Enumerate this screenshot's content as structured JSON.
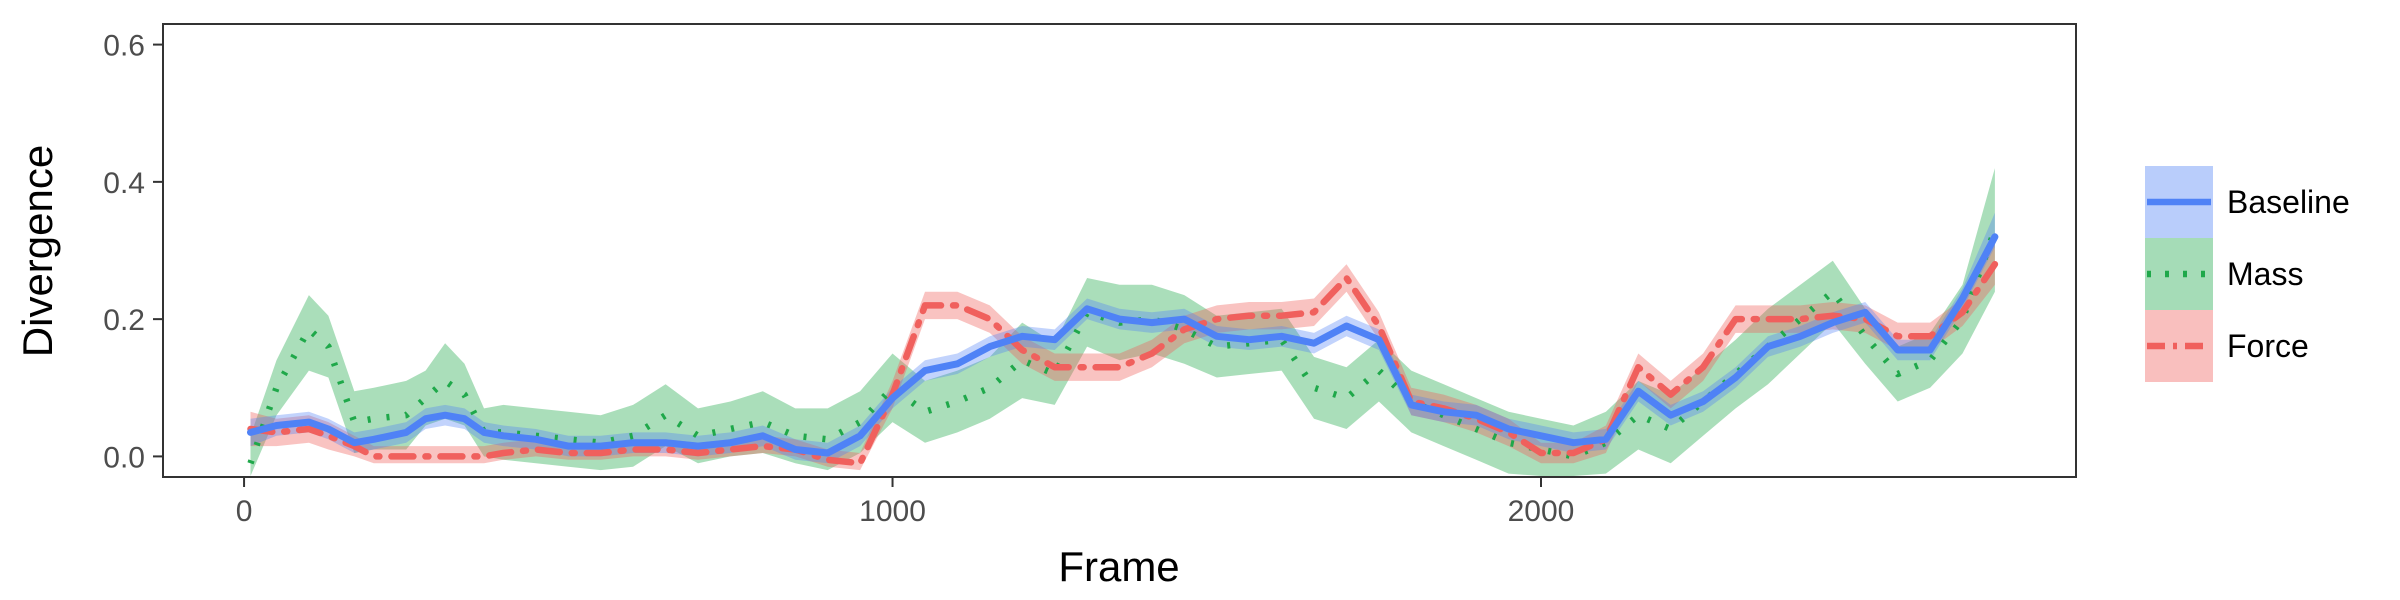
{
  "chart_data": {
    "type": "line",
    "xlabel": "Frame",
    "ylabel": "Divergence",
    "xlim": [
      -125,
      2825
    ],
    "ylim": [
      -0.03,
      0.63
    ],
    "xticks": [
      0,
      1000,
      2000
    ],
    "xtick_labels": [
      "0",
      "1000",
      "2000"
    ],
    "yticks": [
      0.0,
      0.2,
      0.4,
      0.6
    ],
    "ytick_labels": [
      "0.0",
      "0.2",
      "0.4",
      "0.6"
    ],
    "grid": false,
    "legend_position": "right",
    "x": [
      10,
      50,
      100,
      130,
      170,
      200,
      250,
      280,
      310,
      340,
      370,
      400,
      450,
      500,
      550,
      600,
      650,
      700,
      750,
      800,
      850,
      900,
      950,
      1000,
      1050,
      1100,
      1150,
      1200,
      1250,
      1300,
      1350,
      1400,
      1450,
      1500,
      1550,
      1600,
      1650,
      1700,
      1750,
      1800,
      1850,
      1900,
      1950,
      2000,
      2050,
      2100,
      2150,
      2200,
      2250,
      2300,
      2350,
      2400,
      2450,
      2500,
      2550,
      2600,
      2650,
      2700
    ],
    "series": [
      {
        "name": "Baseline",
        "color": "#4f82f6",
        "dash": "solid",
        "values": [
          0.035,
          0.045,
          0.05,
          0.04,
          0.02,
          0.025,
          0.035,
          0.055,
          0.06,
          0.055,
          0.035,
          0.03,
          0.025,
          0.015,
          0.015,
          0.02,
          0.02,
          0.015,
          0.02,
          0.03,
          0.01,
          0.005,
          0.03,
          0.085,
          0.125,
          0.135,
          0.16,
          0.175,
          0.17,
          0.215,
          0.2,
          0.195,
          0.2,
          0.175,
          0.17,
          0.175,
          0.165,
          0.19,
          0.17,
          0.075,
          0.065,
          0.06,
          0.04,
          0.03,
          0.02,
          0.025,
          0.095,
          0.06,
          0.08,
          0.115,
          0.16,
          0.175,
          0.195,
          0.21,
          0.155,
          0.155,
          0.23,
          0.32
        ],
        "lower": [
          0.015,
          0.03,
          0.035,
          0.025,
          0.005,
          0.01,
          0.02,
          0.04,
          0.045,
          0.04,
          0.02,
          0.015,
          0.01,
          0.0,
          0.0,
          0.005,
          0.005,
          0.0,
          0.005,
          0.015,
          -0.005,
          -0.01,
          0.015,
          0.07,
          0.11,
          0.12,
          0.145,
          0.16,
          0.155,
          0.2,
          0.185,
          0.18,
          0.185,
          0.16,
          0.155,
          0.16,
          0.15,
          0.175,
          0.155,
          0.06,
          0.05,
          0.045,
          0.025,
          0.015,
          0.005,
          0.01,
          0.08,
          0.045,
          0.065,
          0.1,
          0.145,
          0.16,
          0.18,
          0.195,
          0.14,
          0.14,
          0.215,
          0.305
        ],
        "upper": [
          0.055,
          0.06,
          0.065,
          0.055,
          0.035,
          0.04,
          0.05,
          0.07,
          0.075,
          0.07,
          0.05,
          0.045,
          0.04,
          0.03,
          0.03,
          0.035,
          0.035,
          0.03,
          0.035,
          0.045,
          0.025,
          0.02,
          0.045,
          0.1,
          0.14,
          0.15,
          0.175,
          0.19,
          0.185,
          0.23,
          0.215,
          0.21,
          0.215,
          0.19,
          0.185,
          0.19,
          0.18,
          0.205,
          0.185,
          0.09,
          0.08,
          0.075,
          0.055,
          0.045,
          0.035,
          0.04,
          0.11,
          0.075,
          0.095,
          0.13,
          0.175,
          0.19,
          0.21,
          0.225,
          0.17,
          0.17,
          0.245,
          0.355
        ]
      },
      {
        "name": "Mass",
        "color": "#1fa84a",
        "dash": "dotted",
        "values": [
          -0.01,
          0.1,
          0.185,
          0.16,
          0.05,
          0.055,
          0.06,
          0.085,
          0.11,
          0.09,
          0.035,
          0.035,
          0.03,
          0.025,
          0.02,
          0.03,
          0.06,
          0.03,
          0.04,
          0.05,
          0.03,
          0.025,
          0.05,
          0.1,
          0.065,
          0.08,
          0.1,
          0.14,
          0.12,
          0.21,
          0.195,
          0.2,
          0.185,
          0.16,
          0.165,
          0.17,
          0.1,
          0.085,
          0.125,
          0.08,
          0.06,
          0.04,
          0.02,
          0.01,
          0.0,
          0.02,
          0.06,
          0.04,
          0.08,
          0.12,
          0.16,
          0.2,
          0.24,
          0.175,
          0.12,
          0.14,
          0.2,
          0.33
        ],
        "lower": [
          -0.05,
          0.06,
          0.125,
          0.115,
          0.005,
          0.01,
          0.01,
          0.045,
          0.055,
          0.045,
          0.0,
          -0.005,
          -0.01,
          -0.015,
          -0.02,
          -0.015,
          0.015,
          -0.01,
          0.0,
          0.005,
          -0.01,
          -0.02,
          0.005,
          0.05,
          0.02,
          0.035,
          0.055,
          0.085,
          0.075,
          0.16,
          0.14,
          0.15,
          0.135,
          0.115,
          0.12,
          0.125,
          0.055,
          0.04,
          0.08,
          0.035,
          0.015,
          -0.005,
          -0.025,
          -0.035,
          -0.045,
          -0.025,
          0.01,
          -0.01,
          0.03,
          0.07,
          0.105,
          0.15,
          0.195,
          0.135,
          0.08,
          0.1,
          0.15,
          0.24
        ],
        "upper": [
          0.03,
          0.14,
          0.235,
          0.205,
          0.095,
          0.1,
          0.11,
          0.125,
          0.165,
          0.135,
          0.07,
          0.075,
          0.07,
          0.065,
          0.06,
          0.075,
          0.105,
          0.07,
          0.08,
          0.095,
          0.07,
          0.07,
          0.095,
          0.15,
          0.11,
          0.125,
          0.145,
          0.195,
          0.165,
          0.26,
          0.25,
          0.25,
          0.235,
          0.205,
          0.21,
          0.215,
          0.145,
          0.13,
          0.17,
          0.125,
          0.105,
          0.085,
          0.065,
          0.055,
          0.045,
          0.065,
          0.11,
          0.09,
          0.13,
          0.17,
          0.215,
          0.25,
          0.285,
          0.215,
          0.16,
          0.18,
          0.25,
          0.42
        ]
      },
      {
        "name": "Force",
        "color": "#f0605d",
        "dash": "dashdot",
        "values": [
          0.04,
          0.035,
          0.04,
          0.03,
          0.015,
          0.0,
          0.0,
          0.0,
          0.0,
          0.0,
          0.0,
          0.005,
          0.01,
          0.005,
          0.005,
          0.01,
          0.01,
          0.005,
          0.01,
          0.015,
          0.01,
          -0.005,
          -0.01,
          0.09,
          0.22,
          0.22,
          0.2,
          0.155,
          0.13,
          0.13,
          0.13,
          0.15,
          0.185,
          0.2,
          0.205,
          0.205,
          0.21,
          0.26,
          0.19,
          0.08,
          0.07,
          0.055,
          0.035,
          0.005,
          0.005,
          0.025,
          0.13,
          0.09,
          0.13,
          0.2,
          0.2,
          0.2,
          0.205,
          0.2,
          0.175,
          0.175,
          0.21,
          0.28
        ],
        "lower": [
          0.015,
          0.015,
          0.02,
          0.01,
          0.0,
          -0.01,
          -0.01,
          -0.01,
          -0.01,
          -0.01,
          -0.01,
          -0.005,
          0.0,
          -0.005,
          -0.005,
          0.0,
          0.0,
          -0.005,
          0.0,
          0.005,
          0.0,
          -0.015,
          -0.02,
          0.07,
          0.2,
          0.2,
          0.18,
          0.135,
          0.11,
          0.11,
          0.11,
          0.13,
          0.165,
          0.18,
          0.185,
          0.185,
          0.19,
          0.24,
          0.17,
          0.06,
          0.05,
          0.035,
          0.015,
          -0.01,
          -0.01,
          0.005,
          0.11,
          0.07,
          0.11,
          0.18,
          0.18,
          0.18,
          0.185,
          0.18,
          0.155,
          0.155,
          0.19,
          0.25
        ],
        "upper": [
          0.065,
          0.055,
          0.06,
          0.05,
          0.03,
          0.015,
          0.015,
          0.015,
          0.015,
          0.015,
          0.015,
          0.02,
          0.025,
          0.02,
          0.02,
          0.025,
          0.025,
          0.02,
          0.025,
          0.03,
          0.025,
          0.01,
          0.005,
          0.11,
          0.24,
          0.24,
          0.22,
          0.175,
          0.15,
          0.15,
          0.15,
          0.17,
          0.205,
          0.22,
          0.225,
          0.225,
          0.23,
          0.28,
          0.21,
          0.1,
          0.09,
          0.075,
          0.055,
          0.02,
          0.02,
          0.045,
          0.15,
          0.11,
          0.15,
          0.22,
          0.22,
          0.22,
          0.225,
          0.22,
          0.195,
          0.195,
          0.23,
          0.31
        ]
      }
    ]
  }
}
